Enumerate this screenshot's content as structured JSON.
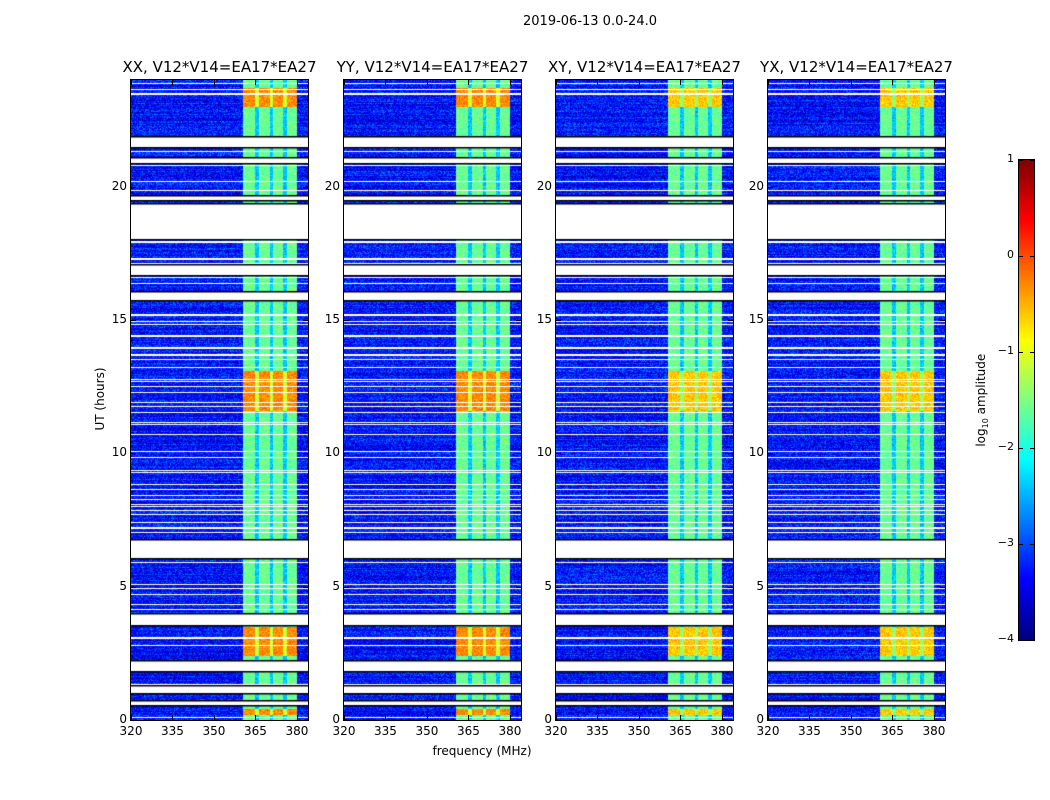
{
  "chart_data": {
    "type": "heatmap",
    "title": "2019-06-13 0.0-24.0",
    "xlabel": "frequency (MHz)",
    "ylabel": "UT (hours)",
    "xlim": [
      320,
      384
    ],
    "ylim": [
      0,
      24
    ],
    "xticks": [
      "320",
      "335",
      "350",
      "365",
      "380"
    ],
    "xtick_values": [
      320,
      335,
      350,
      365,
      380
    ],
    "yticks": [
      "0",
      "5",
      "10",
      "15",
      "20"
    ],
    "ytick_values": [
      0,
      5,
      10,
      15,
      20
    ],
    "panels": [
      {
        "title": "XX, V12*V14=EA17*EA27",
        "pol": "XX"
      },
      {
        "title": "YY, V12*V14=EA17*EA27",
        "pol": "YY"
      },
      {
        "title": "XY, V12*V14=EA17*EA27",
        "pol": "XY"
      },
      {
        "title": "YX, V12*V14=EA17*EA27",
        "pol": "YX"
      }
    ],
    "colormap": "jet",
    "colorbar": {
      "label_prefix": "log",
      "label_sub": "10",
      "label_suffix": " amplitude",
      "range": [
        -4,
        1
      ],
      "ticks": [
        "1",
        "0",
        "−1",
        "−2",
        "−3",
        "−4"
      ],
      "tick_values": [
        1,
        0,
        -1,
        -2,
        -3,
        -4
      ]
    },
    "background_level": -3.3,
    "band_mhz": [
      360.5,
      380.2
    ],
    "subband_edges_mhz": [
      365.6,
      370.9,
      375.7
    ],
    "band_level": -1.6,
    "bright_hours": [
      [
        23.0,
        23.7
      ],
      [
        11.6,
        13.1
      ],
      [
        2.4,
        3.5
      ],
      [
        0.2,
        0.4
      ]
    ],
    "bright_level": -0.3,
    "flagged_hours": [
      [
        21.5,
        21.9
      ],
      [
        20.9,
        21.1
      ],
      [
        19.5,
        19.7
      ],
      [
        18.05,
        19.4
      ],
      [
        16.7,
        17.1
      ],
      [
        15.75,
        16.1
      ],
      [
        6.07,
        6.8
      ],
      [
        3.55,
        4.0
      ],
      [
        1.85,
        2.25
      ],
      [
        1.0,
        1.3
      ],
      [
        0.55,
        0.75
      ]
    ]
  }
}
